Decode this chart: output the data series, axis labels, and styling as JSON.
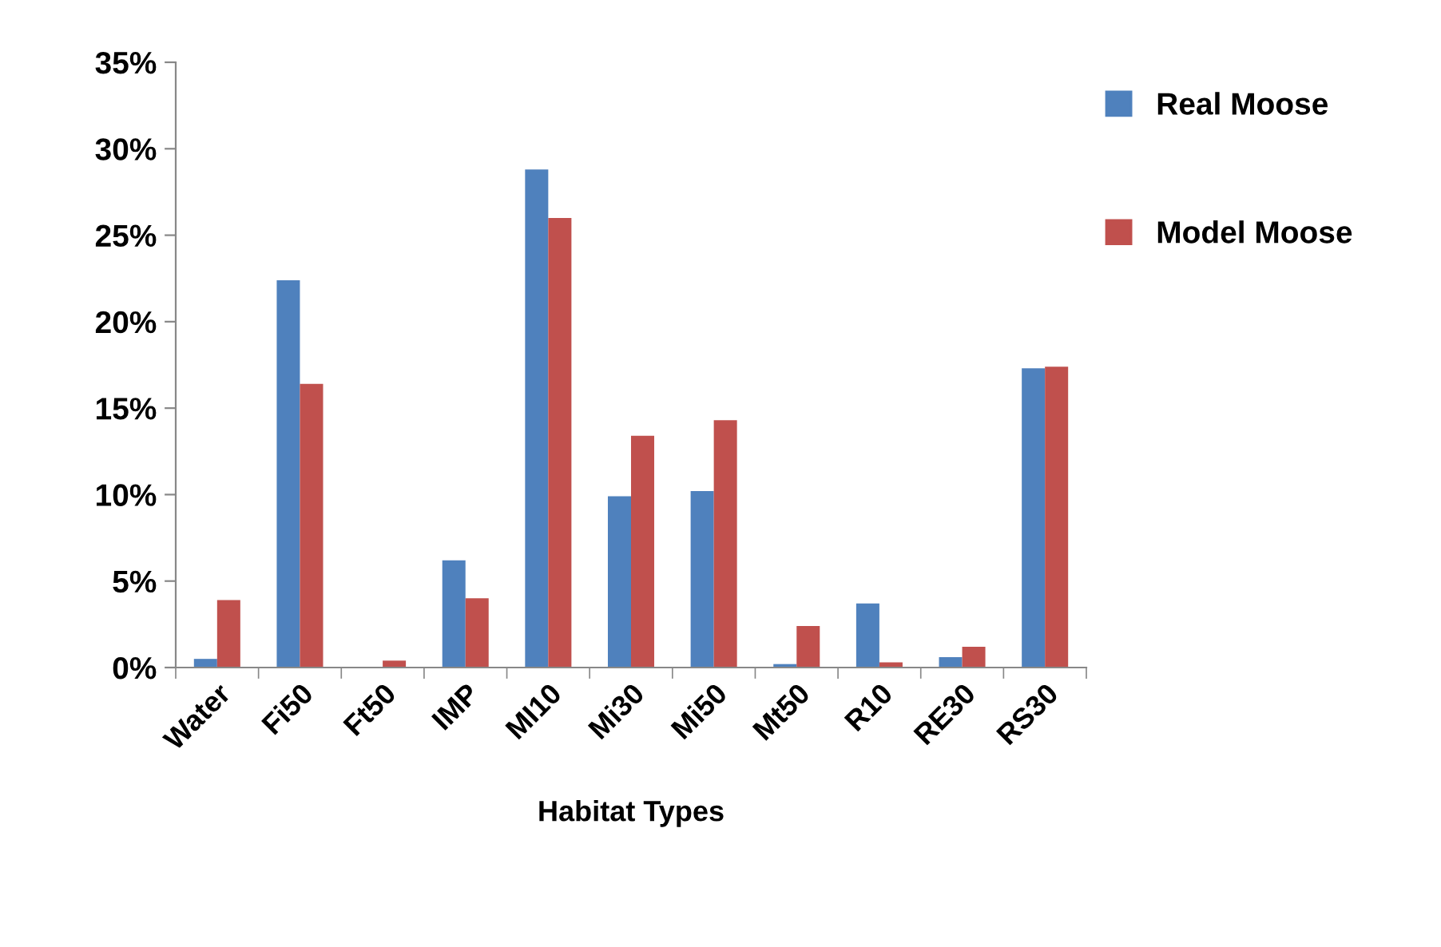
{
  "chart_data": {
    "type": "bar",
    "xlabel": "Habitat Types",
    "categories": [
      "Water",
      "Fi50",
      "Ft50",
      "IMP",
      "MI10",
      "Mi30",
      "Mi50",
      "Mt50",
      "R10",
      "RE30",
      "RS30"
    ],
    "series": [
      {
        "name": "Real Moose",
        "color": "#4f81bd",
        "values": [
          0.5,
          22.4,
          0,
          6.2,
          28.8,
          9.9,
          10.2,
          0.2,
          3.7,
          0.6,
          17.3
        ]
      },
      {
        "name": "Model Moose",
        "color": "#c0504d",
        "values": [
          3.9,
          16.4,
          0.4,
          4.0,
          26.0,
          13.4,
          14.3,
          2.4,
          0.3,
          1.2,
          17.4
        ]
      }
    ],
    "ylim": [
      0,
      35
    ],
    "yticks": [
      {
        "value": 0,
        "label": "0%"
      },
      {
        "value": 5,
        "label": "5%"
      },
      {
        "value": 10,
        "label": "10%"
      },
      {
        "value": 15,
        "label": "15%"
      },
      {
        "value": 20,
        "label": "20%"
      },
      {
        "value": 25,
        "label": "25%"
      },
      {
        "value": 30,
        "label": "30%"
      },
      {
        "value": 35,
        "label": "35%"
      }
    ],
    "grid": false,
    "legend": "top right"
  }
}
